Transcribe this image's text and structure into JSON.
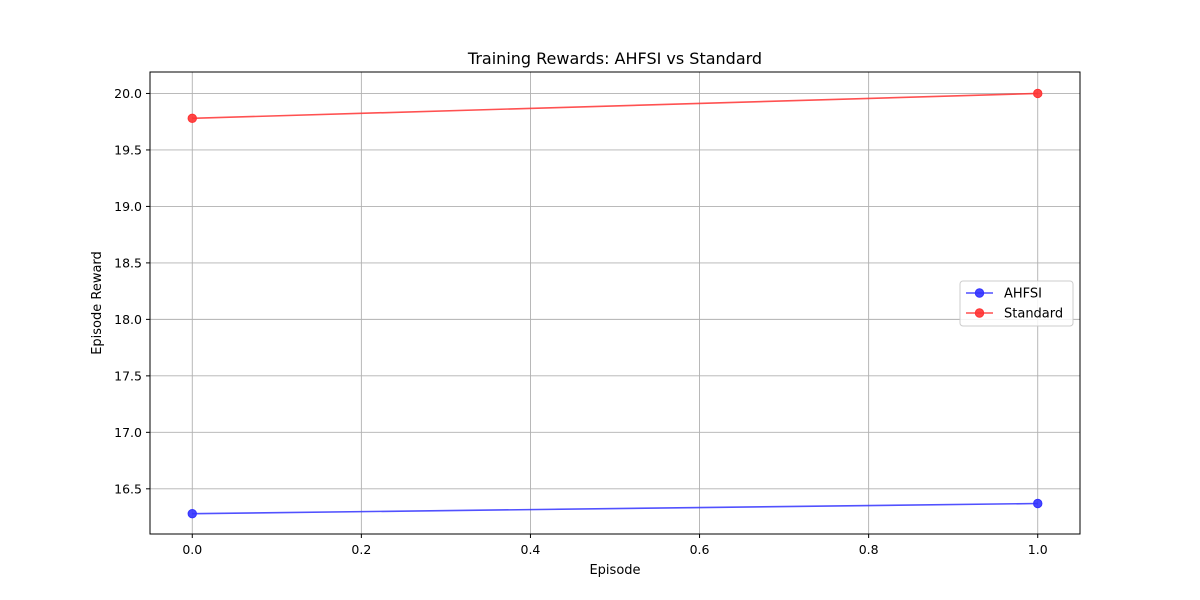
{
  "chart_data": {
    "type": "line",
    "title": "Training Rewards: AHFSI vs Standard",
    "xlabel": "Episode",
    "ylabel": "Episode Reward",
    "x": [
      0,
      1
    ],
    "xlim": [
      -0.05,
      1.05
    ],
    "ylim": [
      16.1,
      20.19
    ],
    "xticks": [
      0.0,
      0.2,
      0.4,
      0.6,
      0.8,
      1.0
    ],
    "xtick_labels": [
      "0.0",
      "0.2",
      "0.4",
      "0.6",
      "0.8",
      "1.0"
    ],
    "yticks": [
      16.5,
      17.0,
      17.5,
      18.0,
      18.5,
      19.0,
      19.5,
      20.0
    ],
    "ytick_labels": [
      "16.5",
      "17.0",
      "17.5",
      "18.0",
      "18.5",
      "19.0",
      "19.5",
      "20.0"
    ],
    "grid": true,
    "legend_position": "center-right",
    "series": [
      {
        "name": "AHFSI",
        "values": [
          16.28,
          16.37
        ],
        "color": "#3333ff",
        "marker": "circle"
      },
      {
        "name": "Standard",
        "values": [
          19.78,
          20.0
        ],
        "color": "#ff3333",
        "marker": "circle"
      }
    ]
  }
}
